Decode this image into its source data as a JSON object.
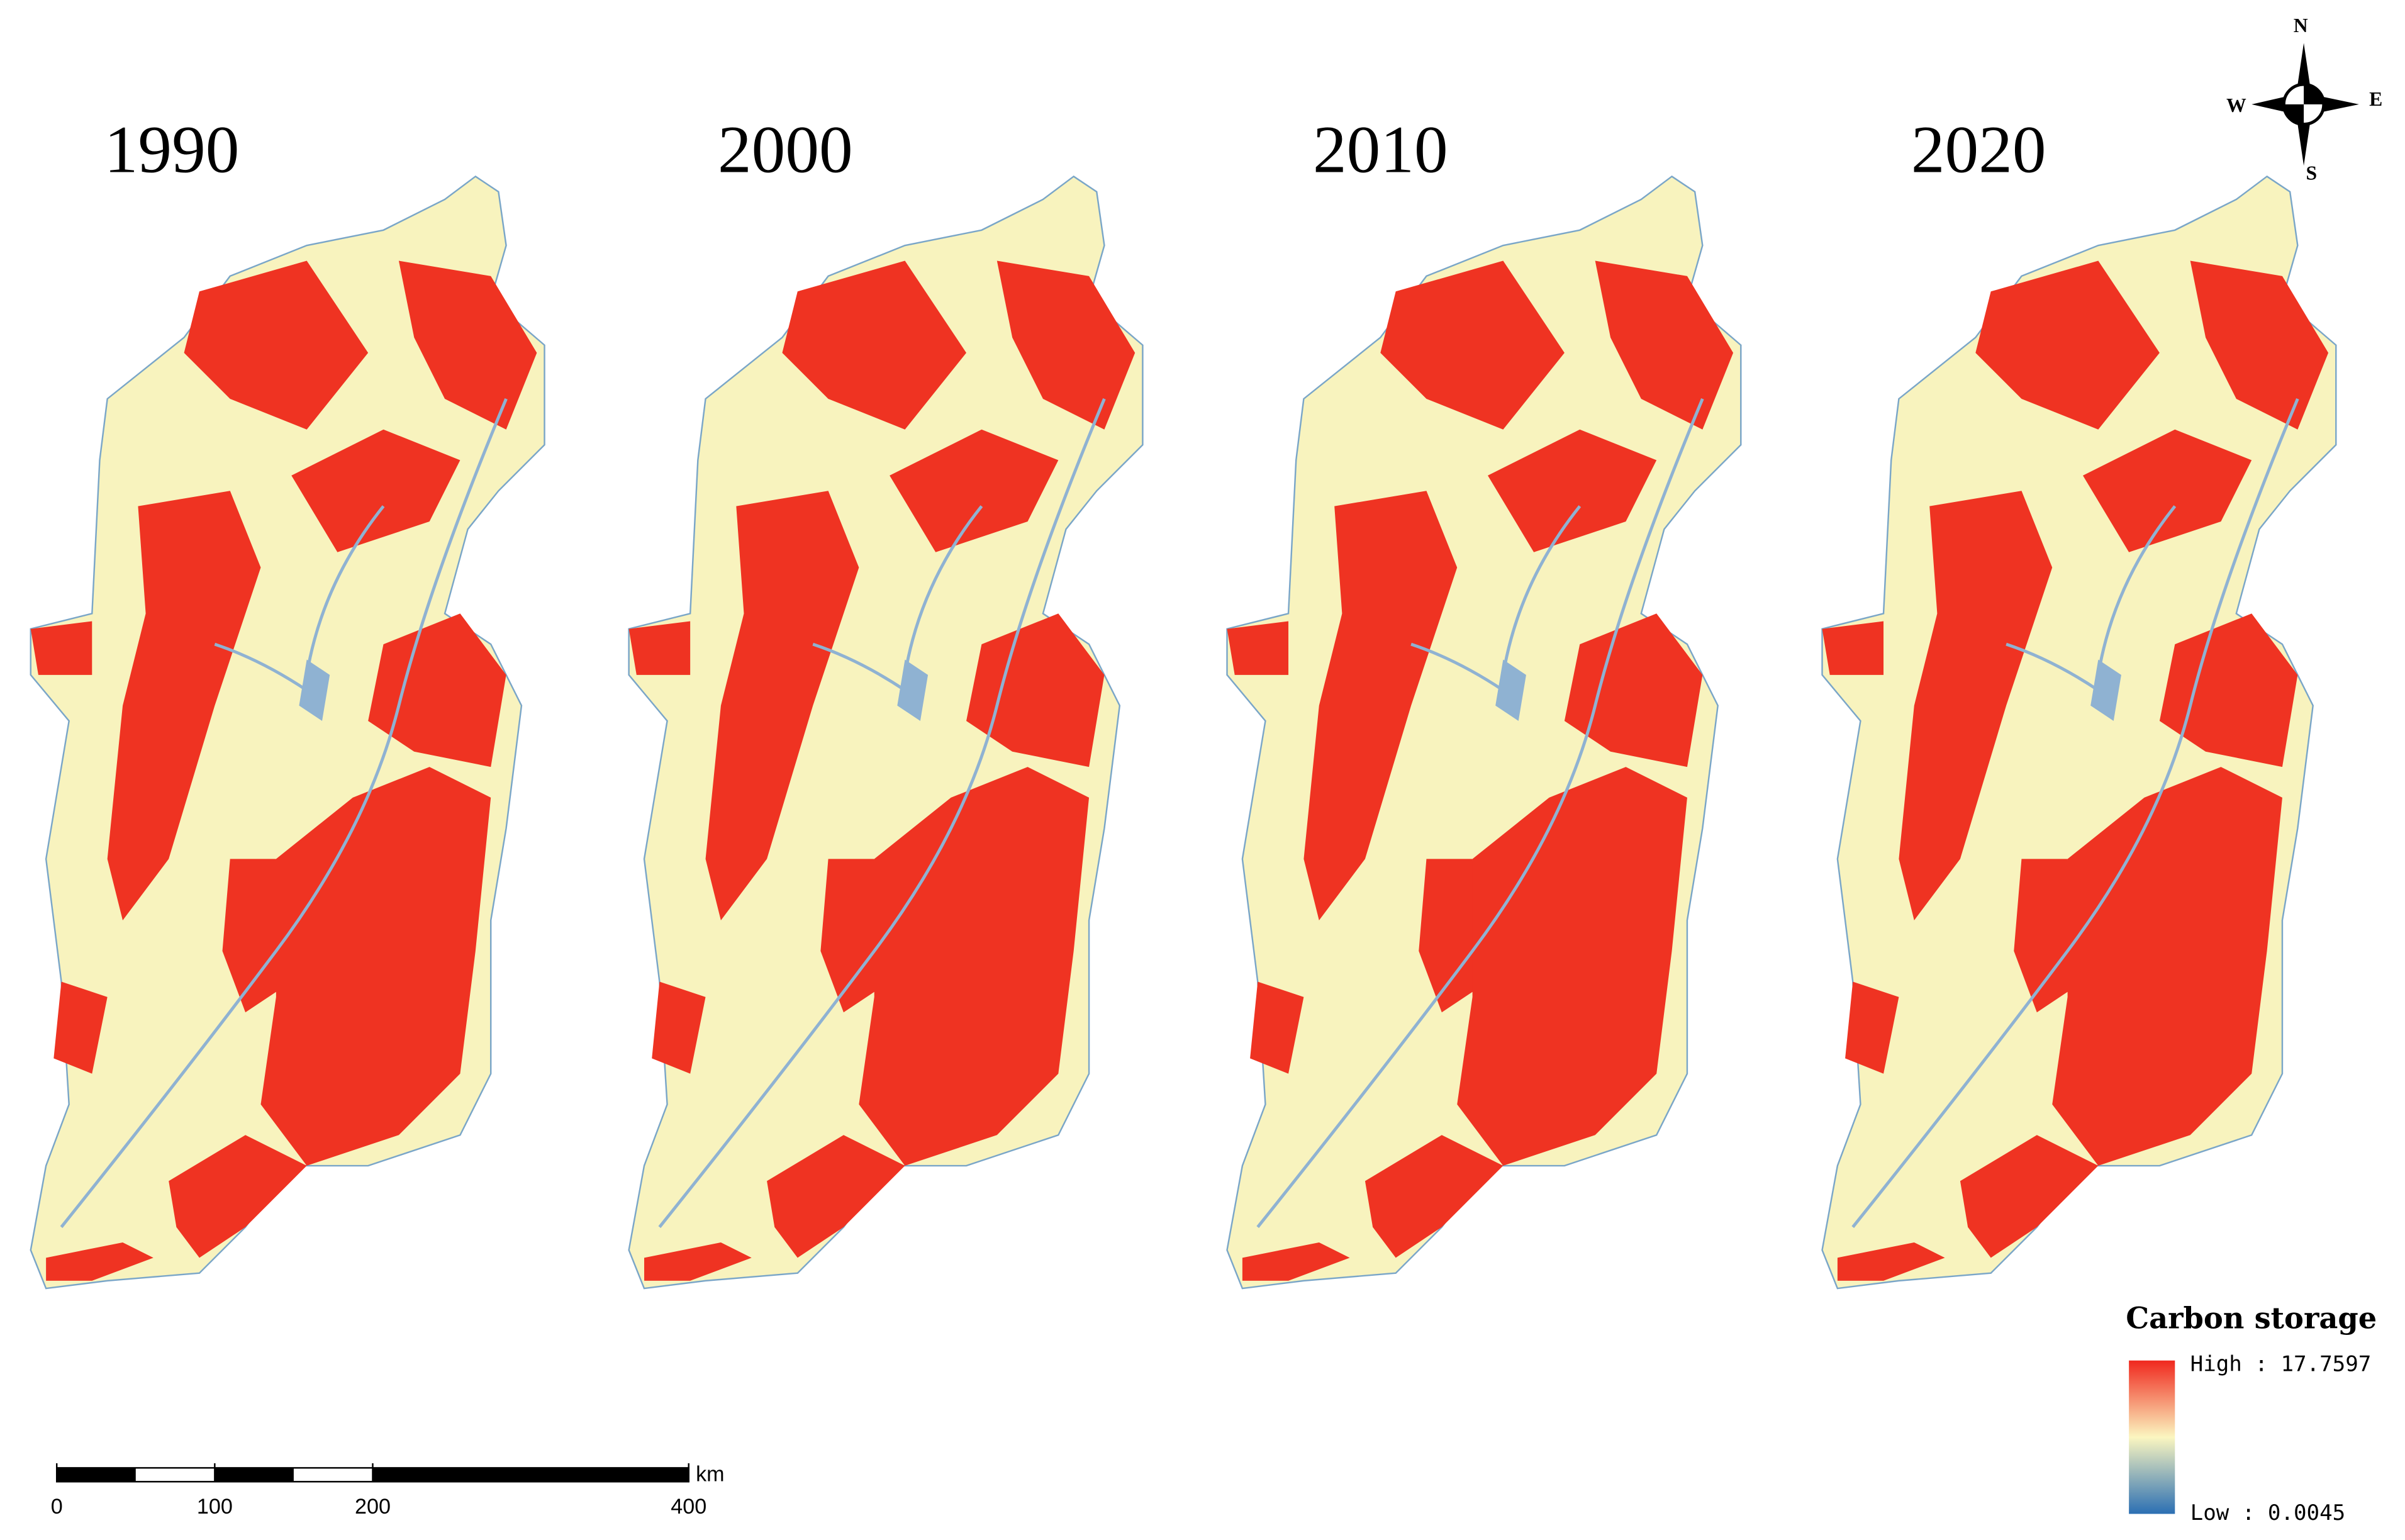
{
  "maps": [
    {
      "year": "1990"
    },
    {
      "year": "2000"
    },
    {
      "year": "2010"
    },
    {
      "year": "2020"
    }
  ],
  "compass": {
    "north": "N",
    "east": "E",
    "south": "S",
    "west": "W"
  },
  "legend": {
    "title": "Carbon storage",
    "high_label": "High : 17.7597",
    "low_label": "Low : 0.0045"
  },
  "scale_bar": {
    "ticks": [
      0,
      100,
      200,
      400
    ],
    "unit": "km"
  }
}
